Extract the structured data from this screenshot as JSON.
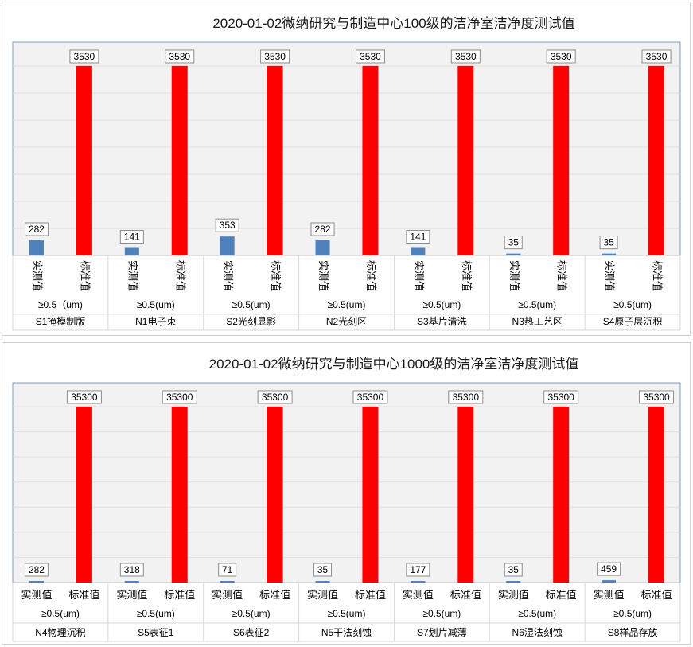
{
  "colors": {
    "measured": "#4f81bd",
    "standard": "#ff0000",
    "plot_bg": "#f2f2f2",
    "plot_border": "#7f9fc7",
    "grid": "#e0e0e0"
  },
  "chart_data": [
    {
      "type": "bar",
      "title": "2020-01-02微纳研究与制造中心100级的洁净室洁净度测试值",
      "series_labels": [
        "实测值",
        "标准值"
      ],
      "rooms": [
        "S1掩模制版",
        "N1电子束",
        "S2光刻显影",
        "N2光刻区",
        "S3基片清洗",
        "N3热工艺区",
        "S4原子层沉积"
      ],
      "particle_size_labels": [
        "≥0.5（um)",
        "≥0.5(um)",
        "≥0.5(um)",
        "≥0.5(um)",
        "≥0.5(um)",
        "≥0.5(um)",
        "≥0.5(um)"
      ],
      "measured": [
        282,
        141,
        353,
        282,
        141,
        35,
        35
      ],
      "standard": [
        3530,
        3530,
        3530,
        3530,
        3530,
        3530,
        3530
      ],
      "ylim": [
        0,
        3530
      ],
      "grid": true
    },
    {
      "type": "bar",
      "title": "2020-01-02微纳研究与制造中心1000级的洁净室洁净度测试值",
      "series_labels": [
        "实测值",
        "标准值"
      ],
      "rooms": [
        "N4物理沉积",
        "S5表征1",
        "S6表征2",
        "N5干法刻蚀",
        "S7划片减薄",
        "N6湿法刻蚀",
        "S8样品存放"
      ],
      "particle_size_labels": [
        "≥0.5(um)",
        "≥0.5(um)",
        "≥0.5(um)",
        "≥0.5(um)",
        "≥0.5(um)",
        "≥0.5(um)",
        "≥0.5(um)"
      ],
      "measured": [
        282,
        318,
        71,
        35,
        177,
        35,
        459
      ],
      "standard": [
        35300,
        35300,
        35300,
        35300,
        35300,
        35300,
        35300
      ],
      "ylim": [
        0,
        35300
      ],
      "grid": true
    }
  ]
}
